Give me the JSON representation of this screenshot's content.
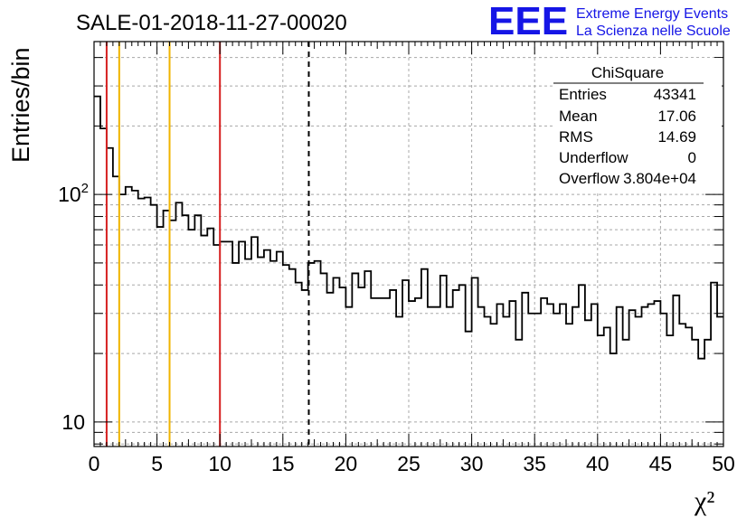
{
  "header": {
    "run_title": "SALE-01-2018-11-27-00020",
    "logo_text": "EEE",
    "logo_line1": "Extreme Energy Events",
    "logo_line2": "La Scienza nelle Scuole"
  },
  "stats": {
    "title": "ChiSquare",
    "rows": [
      {
        "label": "Entries",
        "value": "43341"
      },
      {
        "label": "Mean",
        "value": "17.06"
      },
      {
        "label": "RMS",
        "value": "14.69"
      },
      {
        "label": "Underflow",
        "value": "0"
      },
      {
        "label": "Overflow",
        "value": "3.804e+04"
      }
    ]
  },
  "colors": {
    "red_line": "#d62020",
    "orange_line": "#f0b400",
    "logo_blue": "#1515e6"
  },
  "chart_data": {
    "type": "histogram",
    "ylabel": "Entries/bin",
    "xlabel": "χ²",
    "xlim": [
      0,
      50
    ],
    "ylim": [
      7.8,
      470
    ],
    "y_scale": "log",
    "grid": true,
    "x_ticks": [
      "0",
      "5",
      "10",
      "15",
      "20",
      "25",
      "30",
      "35",
      "40",
      "45",
      "50"
    ],
    "y_ticks": [
      {
        "value": 10,
        "base": "10",
        "exp": ""
      },
      {
        "value": 100,
        "base": "10",
        "exp": "2"
      }
    ],
    "bin_width": 0.5,
    "values": [
      270,
      195,
      160,
      120,
      100,
      108,
      104,
      96,
      97,
      90,
      72,
      85,
      77,
      92,
      81,
      70,
      81,
      66,
      71,
      60,
      62,
      62,
      50,
      62,
      52,
      65,
      53,
      57,
      51,
      56,
      49,
      47,
      41,
      38,
      50,
      51,
      45,
      37,
      43,
      39,
      32,
      45,
      39,
      46,
      35,
      35,
      35,
      38,
      29,
      42,
      34,
      35,
      47,
      32,
      32,
      44,
      32,
      38,
      40,
      25,
      43,
      32,
      29,
      27,
      33,
      29,
      34,
      23,
      37,
      30,
      30,
      35,
      33,
      30,
      33,
      27,
      32,
      40,
      28,
      33,
      24,
      26,
      20,
      32,
      23,
      31,
      29,
      32,
      33,
      34,
      30,
      24,
      36,
      27,
      26,
      23,
      19,
      23,
      41,
      29
    ],
    "vertical_lines": [
      {
        "x": 1,
        "color": "red",
        "style": "solid"
      },
      {
        "x": 2,
        "color": "orange",
        "style": "solid"
      },
      {
        "x": 6,
        "color": "orange",
        "style": "solid"
      },
      {
        "x": 10,
        "color": "red",
        "style": "solid"
      },
      {
        "x": 17.06,
        "color": "black",
        "style": "dashed"
      }
    ]
  }
}
